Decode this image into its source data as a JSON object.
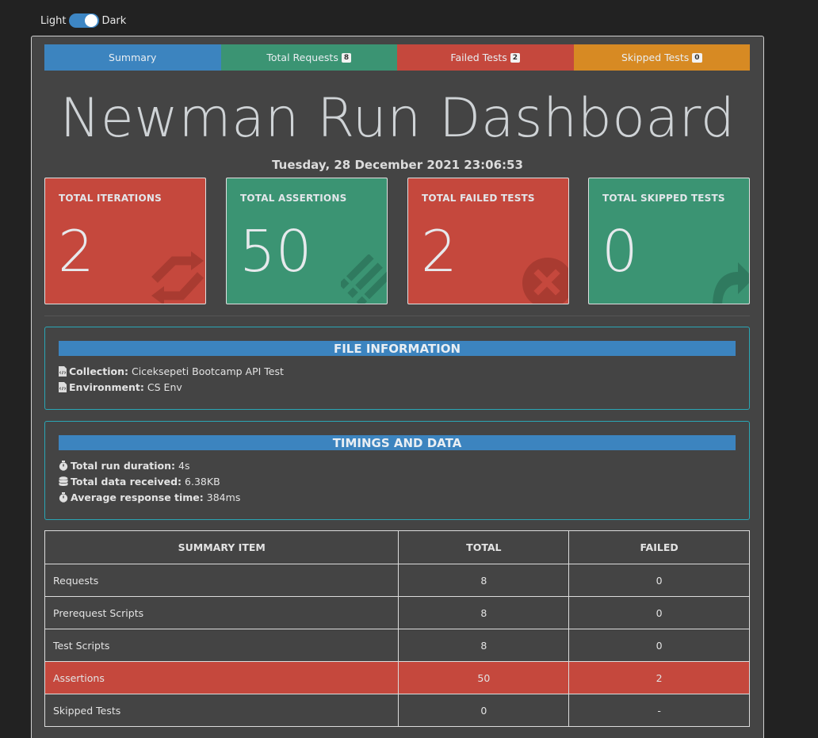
{
  "theme_toggle": {
    "light_label": "Light",
    "dark_label": "Dark"
  },
  "tabs": [
    {
      "label": "Summary",
      "badge": null
    },
    {
      "label": "Total Requests",
      "badge": "8"
    },
    {
      "label": "Failed Tests",
      "badge": "2"
    },
    {
      "label": "Skipped Tests",
      "badge": "0"
    }
  ],
  "title": "Newman Run Dashboard",
  "date": "Tuesday, 28 December 2021 23:06:53",
  "cards": [
    {
      "label": "TOTAL ITERATIONS",
      "value": "2",
      "icon": "sync-icon"
    },
    {
      "label": "TOTAL ASSERTIONS",
      "value": "50",
      "icon": "tasks-icon"
    },
    {
      "label": "TOTAL FAILED TESTS",
      "value": "2",
      "icon": "times-circle-icon"
    },
    {
      "label": "TOTAL SKIPPED TESTS",
      "value": "0",
      "icon": "share-icon"
    }
  ],
  "file_info": {
    "heading": "FILE INFORMATION",
    "collection_label": "Collection:",
    "collection_value": "Ciceksepeti Bootcamp API Test",
    "environment_label": "Environment:",
    "environment_value": "CS Env"
  },
  "timings": {
    "heading": "TIMINGS AND DATA",
    "duration_label": "Total run duration:",
    "duration_value": "4s",
    "data_label": "Total data received:",
    "data_value": "6.38KB",
    "avg_label": "Average response time:",
    "avg_value": "384ms"
  },
  "summary_table": {
    "headers": [
      "SUMMARY ITEM",
      "TOTAL",
      "FAILED"
    ],
    "rows": [
      [
        "Requests",
        "8",
        "0"
      ],
      [
        "Prerequest Scripts",
        "8",
        "0"
      ],
      [
        "Test Scripts",
        "8",
        "0"
      ],
      [
        "Assertions",
        "50",
        "2"
      ],
      [
        "Skipped Tests",
        "0",
        "-"
      ]
    ]
  },
  "colors": {
    "blue": "#3c84bf",
    "green": "#3b9473",
    "red": "#c5483d",
    "orange": "#d78a23",
    "background": "#222222",
    "panel": "#444444"
  }
}
